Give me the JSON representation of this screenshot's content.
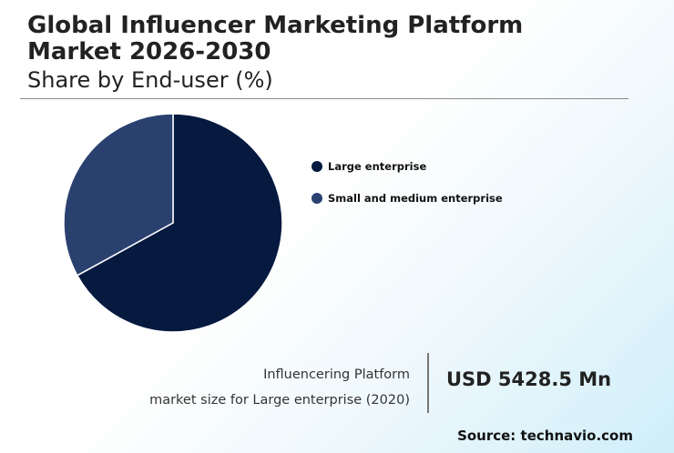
{
  "header": {
    "title": "Global Influencer Marketing Platform Market 2026-2030",
    "subtitle": "Share by End-user (%)"
  },
  "chart_data": {
    "type": "pie",
    "categories": [
      "Large enterprise",
      "Small and medium enterprise"
    ],
    "values": [
      67,
      33
    ],
    "colors": [
      "#061a40",
      "#2a4170"
    ],
    "legend_position": "right"
  },
  "stat": {
    "label_line1": "Influencering Platform",
    "label_line2": "market size for Large enterprise (2020)",
    "value": "USD 5428.5 Mn"
  },
  "source": "Source: technavio.com"
}
